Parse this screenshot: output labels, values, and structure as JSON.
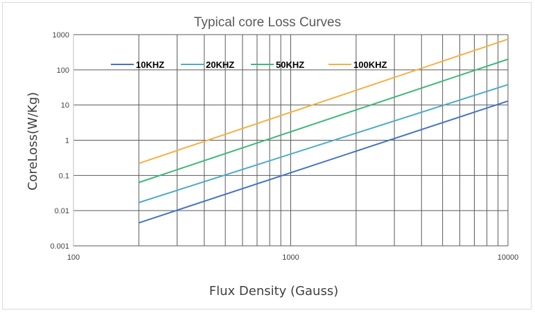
{
  "chart_data": {
    "type": "line",
    "title": "Typical core Loss Curves",
    "xlabel": "Flux Density (Gauss)",
    "ylabel": "CoreLoss(W/Kg)",
    "xscale": "log",
    "yscale": "log",
    "xlim": [
      100,
      10000
    ],
    "ylim": [
      0.001,
      1000
    ],
    "x_ticks": [
      "100",
      "1000",
      "10000"
    ],
    "y_ticks": [
      "0.001",
      "0.01",
      "0.1",
      "1",
      "10",
      "100",
      "1000"
    ],
    "grid": true,
    "legend_position": "top-left inside",
    "series": [
      {
        "name": "10KHZ",
        "color": "#4472c4",
        "points": [
          [
            200,
            0.0045
          ],
          [
            10000,
            13
          ]
        ]
      },
      {
        "name": "20KHZ",
        "color": "#4bacc6",
        "points": [
          [
            200,
            0.017
          ],
          [
            10000,
            38
          ]
        ]
      },
      {
        "name": "50KHZ",
        "color": "#3cb878",
        "points": [
          [
            200,
            0.063
          ],
          [
            10000,
            200
          ]
        ]
      },
      {
        "name": "100KHZ",
        "color": "#f5b041",
        "points": [
          [
            200,
            0.22
          ],
          [
            10000,
            740
          ]
        ]
      }
    ]
  }
}
